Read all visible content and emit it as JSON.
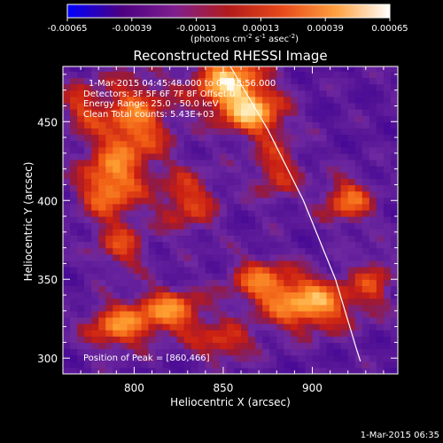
{
  "chart_data": {
    "type": "heatmap",
    "title": "Reconstructed RHESSI Image",
    "xlabel": "Heliocentric X (arcsec)",
    "ylabel": "Heliocentric Y (arcsec)",
    "xlim": [
      760,
      948
    ],
    "ylim": [
      290,
      485
    ],
    "xticks": [
      800,
      850,
      900
    ],
    "yticks": [
      300,
      350,
      400,
      450
    ],
    "colorbar": {
      "ticks": [
        "-0.00065",
        "-0.00039",
        "-0.00013",
        "0.00013",
        "0.00039",
        "0.00065"
      ],
      "range": [
        -0.00065,
        0.00065
      ],
      "unit_label": "(photons cm",
      "unit_exp1": "-2",
      "unit_mid": " s",
      "unit_exp2": "-1",
      "unit_mid2": " asec",
      "unit_exp3": "-2",
      "unit_end": ")",
      "colors": [
        "#0000ff",
        "#4b0082",
        "#7f1f8f",
        "#b31b1b",
        "#e84a1a",
        "#ffa040",
        "#ffffff"
      ]
    },
    "annotations": {
      "time": "1-Mar-2015 04:45:48.000 to 04:48:56.000",
      "detectors": "Detectors: 3F 5F 6F 7F 8F  Offset 0",
      "energy": "Energy Range: 25.0 - 50.0 keV",
      "clean": "Clean    Total counts: 5.43E+03",
      "peak": "Position of Peak = [860,466]"
    },
    "limb": [
      [
        854,
        485
      ],
      [
        875,
        445
      ],
      [
        895,
        400
      ],
      [
        913,
        350
      ],
      [
        925,
        305
      ],
      [
        927,
        298
      ]
    ],
    "sources": [
      {
        "x": 853,
        "y": 475,
        "sx": 14,
        "sy": 14,
        "amp": 1.0
      },
      {
        "x": 868,
        "y": 455,
        "sx": 12,
        "sy": 10,
        "amp": 0.8
      },
      {
        "x": 800,
        "y": 450,
        "sx": 14,
        "sy": 20,
        "amp": 0.75
      },
      {
        "x": 786,
        "y": 410,
        "sx": 12,
        "sy": 16,
        "amp": 0.8
      },
      {
        "x": 830,
        "y": 400,
        "sx": 12,
        "sy": 14,
        "amp": 0.55
      },
      {
        "x": 793,
        "y": 370,
        "sx": 10,
        "sy": 10,
        "amp": 0.5
      },
      {
        "x": 880,
        "y": 420,
        "sx": 10,
        "sy": 14,
        "amp": 0.5
      },
      {
        "x": 920,
        "y": 400,
        "sx": 10,
        "sy": 10,
        "amp": 0.7
      },
      {
        "x": 898,
        "y": 335,
        "sx": 18,
        "sy": 12,
        "amp": 0.95
      },
      {
        "x": 870,
        "y": 350,
        "sx": 12,
        "sy": 10,
        "amp": 0.6
      },
      {
        "x": 820,
        "y": 330,
        "sx": 14,
        "sy": 10,
        "amp": 0.8
      },
      {
        "x": 790,
        "y": 320,
        "sx": 12,
        "sy": 10,
        "amp": 0.75
      },
      {
        "x": 850,
        "y": 310,
        "sx": 12,
        "sy": 8,
        "amp": 0.55
      },
      {
        "x": 935,
        "y": 350,
        "sx": 8,
        "sy": 12,
        "amp": 0.45
      },
      {
        "x": 770,
        "y": 460,
        "sx": 8,
        "sy": 12,
        "amp": 0.45
      }
    ]
  },
  "footer": {
    "timestamp": "1-Mar-2015 06:35"
  }
}
